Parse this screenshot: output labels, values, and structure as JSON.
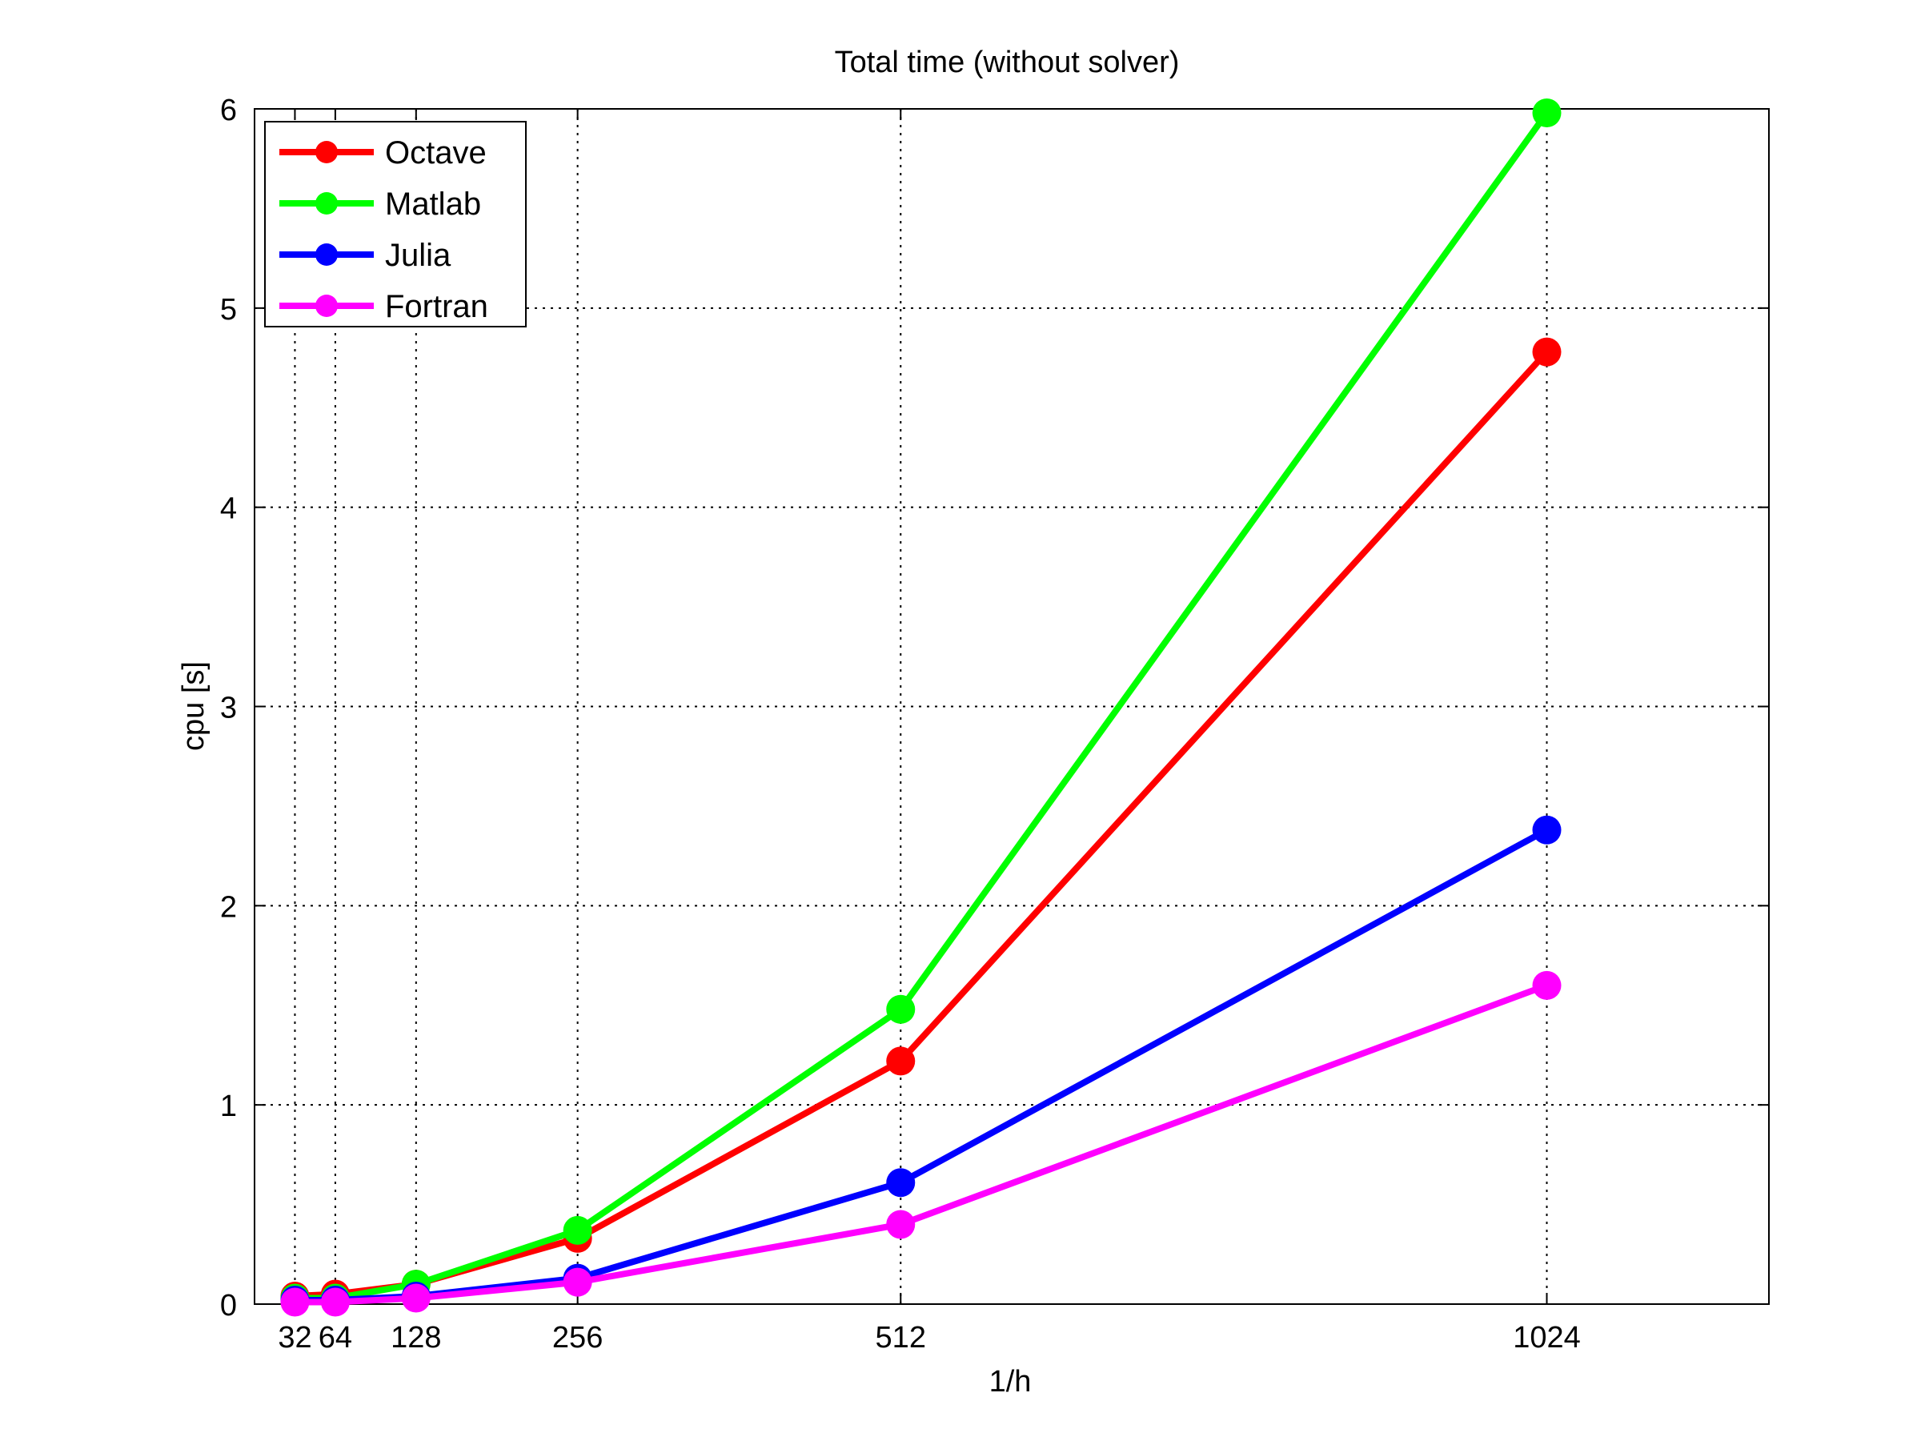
{
  "chart_data": {
    "type": "line",
    "title": "Total time (without solver)",
    "xlabel": "1/h",
    "ylabel": "cpu [s]",
    "x": [
      32,
      64,
      128,
      256,
      512,
      1024
    ],
    "xticks": [
      32,
      64,
      128,
      256,
      512,
      1024
    ],
    "xtick_labels": [
      "32",
      "64",
      "128",
      "256",
      "512",
      "1024"
    ],
    "xlim": [
      0,
      1200
    ],
    "ylim": [
      0,
      6
    ],
    "yticks": [
      0,
      1,
      2,
      3,
      4,
      5,
      6
    ],
    "grid": true,
    "legend_position": "top-left",
    "series": [
      {
        "name": "Octave",
        "color": "#ff0000",
        "values": [
          0.04,
          0.05,
          0.1,
          0.33,
          1.22,
          4.78
        ]
      },
      {
        "name": "Matlab",
        "color": "#00ff00",
        "values": [
          0.03,
          0.03,
          0.1,
          0.37,
          1.48,
          5.98
        ]
      },
      {
        "name": "Julia",
        "color": "#0000ff",
        "values": [
          0.02,
          0.02,
          0.04,
          0.13,
          0.61,
          2.38
        ]
      },
      {
        "name": "Fortran",
        "color": "#ff00ff",
        "values": [
          0.01,
          0.01,
          0.03,
          0.11,
          0.4,
          1.6
        ]
      }
    ]
  }
}
